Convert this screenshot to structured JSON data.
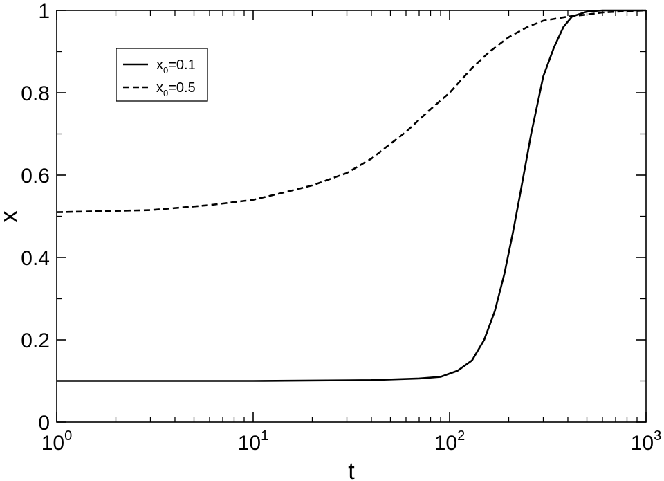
{
  "chart_data": {
    "type": "line",
    "xlabel": "t",
    "ylabel": "x",
    "xscale": "log",
    "xlim": [
      1,
      1000
    ],
    "ylim": [
      0,
      1
    ],
    "x_ticks": [
      {
        "value": 1,
        "base": "10",
        "exp": "0"
      },
      {
        "value": 10,
        "base": "10",
        "exp": "1"
      },
      {
        "value": 100,
        "base": "10",
        "exp": "2"
      },
      {
        "value": 1000,
        "base": "10",
        "exp": "3"
      }
    ],
    "y_ticks": [
      {
        "value": 0,
        "label": "0"
      },
      {
        "value": 0.2,
        "label": "0.2"
      },
      {
        "value": 0.4,
        "label": "0.4"
      },
      {
        "value": 0.6,
        "label": "0.6"
      },
      {
        "value": 0.8,
        "label": "0.8"
      },
      {
        "value": 1,
        "label": "1"
      }
    ],
    "legend_placement": "top-left",
    "grid": false,
    "series": [
      {
        "name_base": "x",
        "name_sub": "0",
        "name_rest": "=0.1",
        "style": "solid",
        "x": [
          1,
          10,
          40,
          70,
          90,
          110,
          130,
          150,
          170,
          190,
          210,
          230,
          260,
          300,
          340,
          380,
          420,
          500,
          600,
          800,
          1000
        ],
        "y": [
          0.1,
          0.1,
          0.102,
          0.106,
          0.11,
          0.125,
          0.15,
          0.2,
          0.27,
          0.36,
          0.46,
          0.56,
          0.7,
          0.84,
          0.91,
          0.96,
          0.985,
          0.997,
          1.0,
          1.0,
          1.0
        ]
      },
      {
        "name_base": "x",
        "name_sub": "0",
        "name_rest": "=0.5",
        "style": "dashed",
        "x": [
          1,
          3,
          6,
          10,
          15,
          20,
          30,
          40,
          60,
          80,
          100,
          130,
          160,
          200,
          250,
          300,
          400,
          500,
          600,
          800,
          1000
        ],
        "y": [
          0.51,
          0.515,
          0.527,
          0.54,
          0.56,
          0.575,
          0.605,
          0.64,
          0.705,
          0.76,
          0.8,
          0.86,
          0.9,
          0.935,
          0.96,
          0.975,
          0.985,
          0.99,
          0.995,
          0.998,
          1.0
        ]
      }
    ]
  }
}
